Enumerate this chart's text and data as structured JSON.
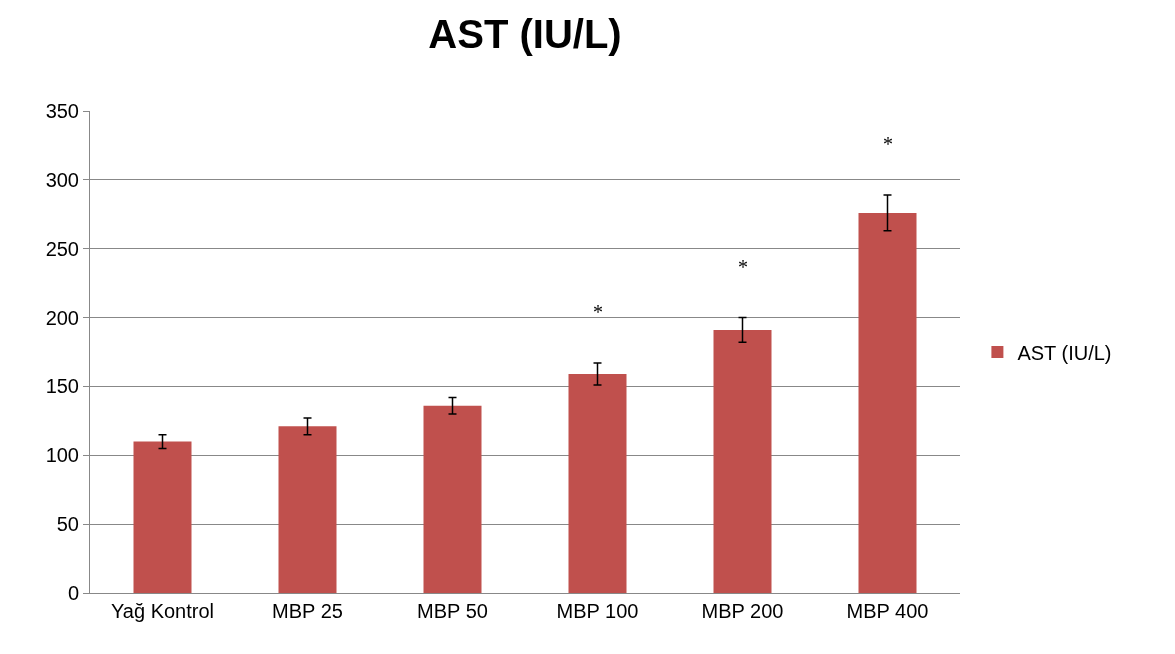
{
  "chart_data": {
    "type": "bar",
    "title": "AST (IU/L)",
    "categories": [
      "Yağ Kontrol",
      "MBP 25",
      "MBP 50",
      "MBP 100",
      "MBP 200",
      "MBP 400"
    ],
    "series": [
      {
        "name": "AST (IU/L)",
        "color": "#c0504d",
        "values": [
          110,
          121,
          136,
          159,
          191,
          276
        ],
        "errors": [
          5,
          6,
          6,
          8,
          9,
          13
        ],
        "value_labels": [
          null,
          null,
          null,
          "*",
          "*",
          "*"
        ]
      }
    ],
    "ylim": [
      0,
      350
    ],
    "yticks": [
      0,
      50,
      100,
      150,
      200,
      250,
      300,
      350
    ],
    "grid": "y",
    "legend": "right"
  }
}
